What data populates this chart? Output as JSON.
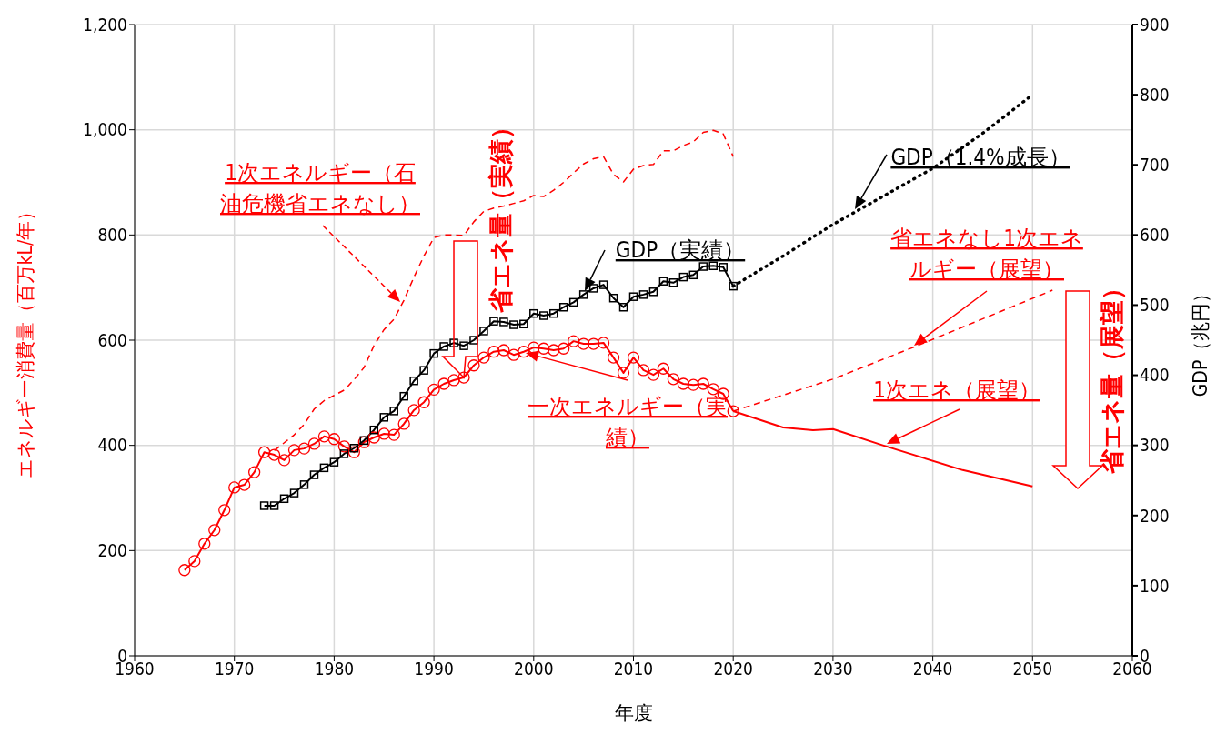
{
  "chart_data": {
    "type": "line",
    "xlabel": "年度",
    "ylabel": "エネルギー消費量（百万kL/年）",
    "y2label": "GDP（兆円）",
    "xlim": [
      1960,
      2060
    ],
    "xticks": [
      1960,
      1970,
      1980,
      1990,
      2000,
      2010,
      2020,
      2030,
      2040,
      2050,
      2060
    ],
    "ylim": [
      0,
      1200
    ],
    "yticks": [
      0,
      200,
      400,
      600,
      800,
      {
        "value": 1000,
        "label": "1,000"
      },
      {
        "value": 1200,
        "label": "1,200"
      }
    ],
    "y2lim": [
      0,
      900
    ],
    "y2ticks": [
      0,
      100,
      200,
      300,
      400,
      500,
      600,
      700,
      800,
      900
    ],
    "grid": true,
    "annotations": [
      {
        "text": "省エネ量（実績）",
        "x": 1993,
        "y": 529
      },
      "省エネ量（展望）"
    ],
    "series": [
      {
        "name": "一次エネルギー（実績）",
        "color": "#ff0000",
        "marker": "circle",
        "line_style": "solid",
        "x": [
          1965,
          1966,
          1967,
          1968,
          1969,
          1970,
          1971,
          1972,
          1973,
          1974,
          1975,
          1976,
          1977,
          1978,
          1979,
          1980,
          1981,
          1982,
          1983,
          1984,
          1985,
          1986,
          1987,
          1988,
          1989,
          1990,
          1991,
          1992,
          1993,
          1994,
          1995,
          1996,
          1997,
          1998,
          1999,
          2000,
          2001,
          2002,
          2003,
          2004,
          2005,
          2006,
          2007,
          2008,
          2009,
          2010,
          2011,
          2012,
          2013,
          2014,
          2015,
          2016,
          2017,
          2018,
          2019,
          2020
        ],
        "values": [
          163,
          180,
          213,
          239,
          277,
          320,
          325,
          349,
          387,
          382,
          372,
          391,
          394,
          403,
          417,
          412,
          398,
          387,
          406,
          415,
          422,
          420,
          441,
          467,
          482,
          506,
          517,
          524,
          529,
          552,
          567,
          578,
          581,
          572,
          578,
          586,
          584,
          581,
          584,
          598,
          593,
          593,
          595,
          567,
          538,
          567,
          543,
          534,
          546,
          526,
          517,
          515,
          517,
          507,
          498,
          465
        ]
      },
      {
        "name": "1次エネルギー（石油危機省エネなし）",
        "color": "#ff0000",
        "marker": "none",
        "line_style": "dashed",
        "x": [
          1974,
          1975,
          1976,
          1977,
          1978,
          1979,
          1980,
          1981,
          1982,
          1983,
          1984,
          1985,
          1986,
          1987,
          1988,
          1989,
          1990,
          1991,
          1992,
          1993,
          1994,
          1995,
          1996,
          1997,
          1998,
          1999,
          2000,
          2001,
          2002,
          2003,
          2004,
          2005,
          2006,
          2007,
          2008,
          2009,
          2010,
          2011,
          2012,
          2013,
          2014,
          2015,
          2016,
          2017,
          2018,
          2019,
          2020
        ],
        "values": [
          390,
          405,
          420,
          440,
          469,
          485,
          495,
          505,
          525,
          548,
          590,
          620,
          640,
          676,
          720,
          760,
          795,
          800,
          800,
          799,
          825,
          845,
          851,
          855,
          860,
          865,
          875,
          873,
          885,
          900,
          918,
          935,
          945,
          949,
          915,
          901,
          925,
          932,
          934,
          960,
          960,
          970,
          977,
          995,
          999,
          992,
          949
        ]
      },
      {
        "name": "GDP（実績）",
        "color": "#000000",
        "marker": "square",
        "line_style": "solid",
        "axis": "y2",
        "x": [
          1973,
          1974,
          1975,
          1976,
          1977,
          1978,
          1979,
          1980,
          1981,
          1982,
          1983,
          1984,
          1985,
          1986,
          1987,
          1988,
          1989,
          1990,
          1991,
          1992,
          1993,
          1994,
          1995,
          1996,
          1997,
          1998,
          1999,
          2000,
          2001,
          2002,
          2003,
          2004,
          2005,
          2006,
          2007,
          2008,
          2009,
          2010,
          2011,
          2012,
          2013,
          2014,
          2015,
          2016,
          2017,
          2018,
          2019,
          2020
        ],
        "values": [
          214,
          214,
          224,
          232,
          244,
          258,
          268,
          276,
          288,
          296,
          307,
          322,
          340,
          349,
          370,
          392,
          407,
          431,
          441,
          446,
          442,
          450,
          463,
          477,
          476,
          472,
          473,
          488,
          485,
          488,
          497,
          504,
          515,
          524,
          529,
          510,
          497,
          512,
          515,
          519,
          534,
          532,
          540,
          543,
          555,
          556,
          554,
          527
        ]
      },
      {
        "name": "GDP（1.4%成長）",
        "color": "#000000",
        "marker": "none",
        "line_style": "dotted",
        "axis": "y2",
        "x": [
          2020,
          2025,
          2030,
          2035,
          2040,
          2045,
          2050
        ],
        "values": [
          527,
          570,
          615,
          655,
          695,
          745,
          800
        ]
      },
      {
        "name": "省エネなし1次エネルギー（展望）",
        "color": "#ff0000",
        "marker": "none",
        "line_style": "dashed",
        "x": [
          2020,
          2030,
          2038,
          2052
        ],
        "values": [
          465,
          526,
          586,
          695
        ]
      },
      {
        "name": "1次エネ（展望）",
        "color": "#ff0000",
        "marker": "none",
        "line_style": "solid",
        "x": [
          2020,
          2025,
          2028,
          2030,
          2035,
          2043,
          2050
        ],
        "values": [
          465,
          434,
          429,
          431,
          400,
          353,
          322
        ]
      }
    ]
  }
}
